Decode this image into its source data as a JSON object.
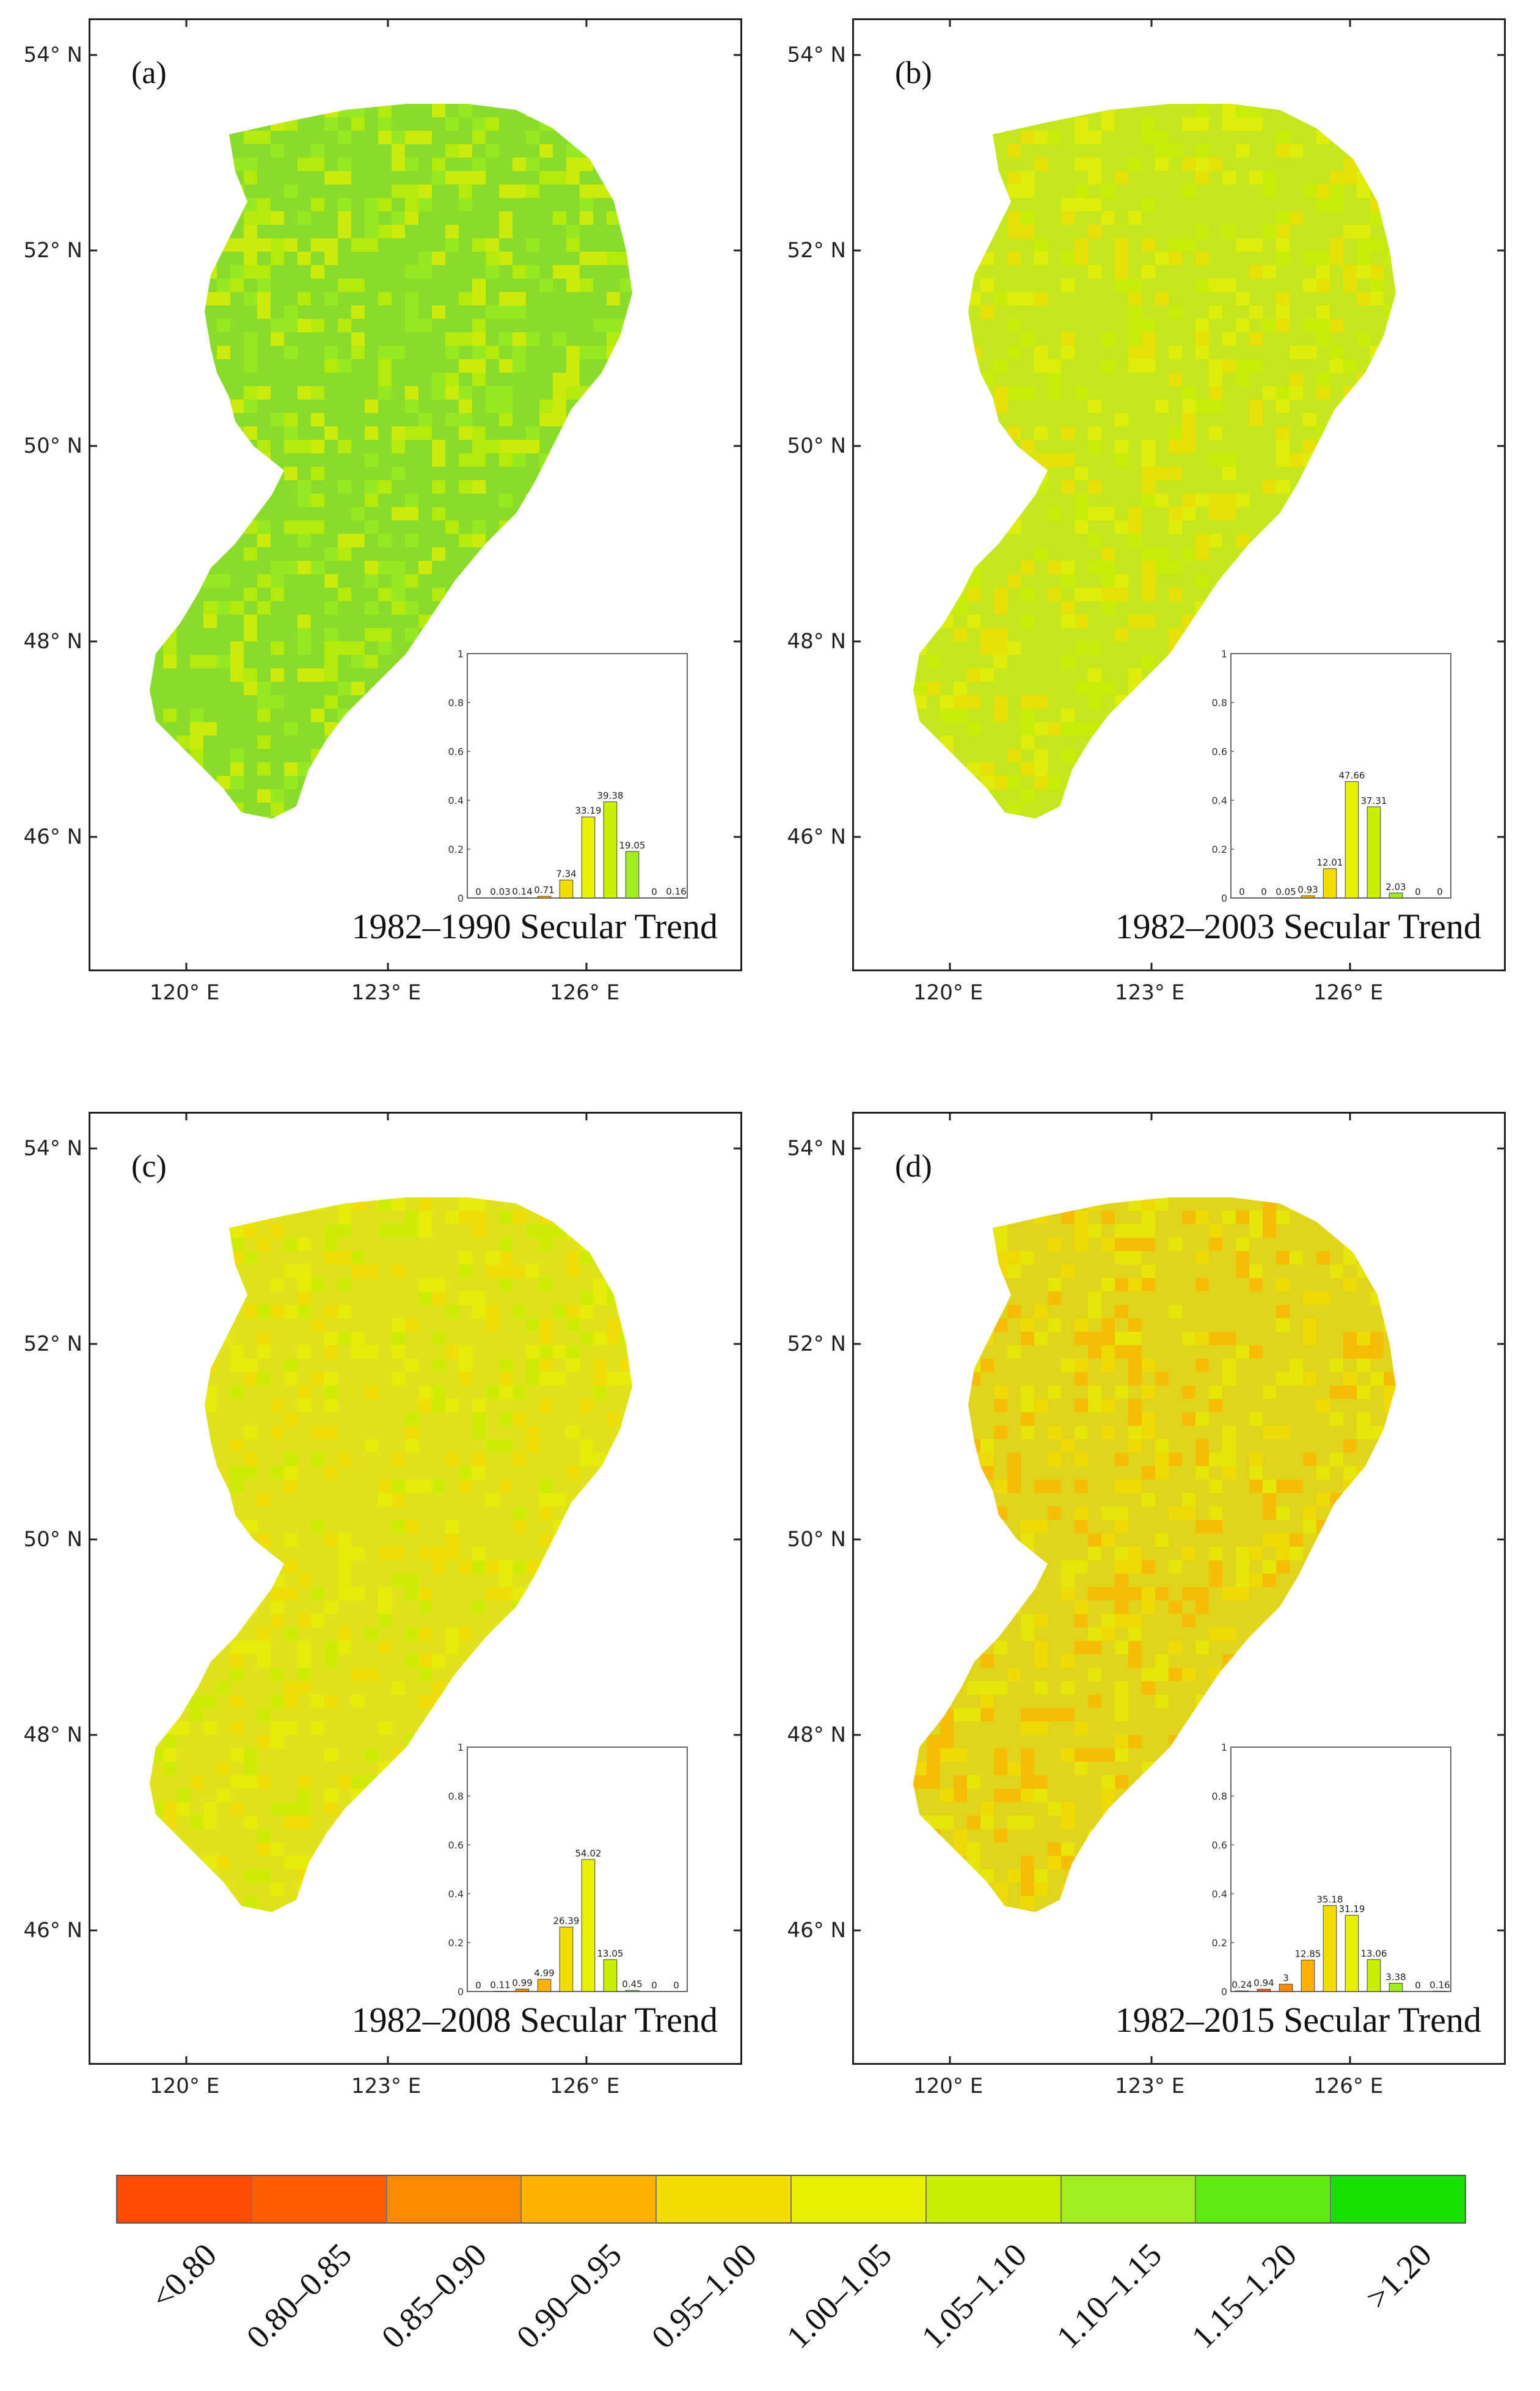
{
  "panels": [
    {
      "id": "a",
      "label": "(a)",
      "caption": "1982–1990  Secular Trend",
      "tint": "#8bdc2a",
      "histogram": {
        "values": [
          0,
          0.03,
          0.14,
          0.71,
          7.34,
          33.19,
          39.38,
          19.05,
          0,
          0.16
        ],
        "labels": [
          "0",
          "0.03",
          "0.14",
          "0.71",
          "7.34",
          "33.19",
          "39.38",
          "19.05",
          "0",
          "0.16"
        ]
      }
    },
    {
      "id": "b",
      "label": "(b)",
      "caption": "1982–2003  Secular Trend",
      "tint": "#c6e61e",
      "histogram": {
        "values": [
          0,
          0,
          0.05,
          0.93,
          12.01,
          47.66,
          37.31,
          2.03,
          0,
          0
        ],
        "labels": [
          "0",
          "0",
          "0.05",
          "0.93",
          "12.01",
          "47.66",
          "37.31",
          "2.03",
          "0",
          "0"
        ]
      }
    },
    {
      "id": "c",
      "label": "(c)",
      "caption": "1982–2008  Secular Trend",
      "tint": "#dfe21c",
      "histogram": {
        "values": [
          0,
          0.11,
          0.99,
          4.99,
          26.39,
          54.02,
          13.05,
          0.45,
          0,
          0
        ],
        "labels": [
          "0",
          "0.11",
          "0.99",
          "4.99",
          "26.39",
          "54.02",
          "13.05",
          "0.45",
          "0",
          "0"
        ]
      }
    },
    {
      "id": "d",
      "label": "(d)",
      "caption": "1982–2015  Secular Trend",
      "tint": "#e0d41c",
      "histogram": {
        "values": [
          0.24,
          0.94,
          3,
          12.85,
          35.18,
          31.19,
          13.06,
          3.38,
          0,
          0.16
        ],
        "labels": [
          "0.24",
          "0.94",
          "3",
          "12.85",
          "35.18",
          "31.19",
          "13.06",
          "3.38",
          "0",
          "0.16"
        ]
      }
    }
  ],
  "axes": {
    "lat_labels": [
      "54° N",
      "52° N",
      "50° N",
      "48° N",
      "46° N"
    ],
    "lon_labels": [
      "120° E",
      "123° E",
      "126° E"
    ]
  },
  "inset_axis": {
    "y_ticks": [
      "1",
      "0.8",
      "0.6",
      "0.4",
      "0.2",
      "0"
    ],
    "ylim": [
      0,
      1
    ]
  },
  "legend": {
    "classes": [
      "<0.80",
      "0.80–0.85",
      "0.85–0.90",
      "0.90–0.95",
      "0.95–1.00",
      "1.00–1.05",
      "1.05–1.10",
      "1.10–1.15",
      "1.15–1.20",
      ">1.20"
    ],
    "colors": [
      "#ff4a00",
      "#ff5d00",
      "#ff8a00",
      "#ffb300",
      "#f5dd00",
      "#e8f000",
      "#c8f000",
      "#a0ee20",
      "#60ea10",
      "#18e000"
    ]
  }
}
